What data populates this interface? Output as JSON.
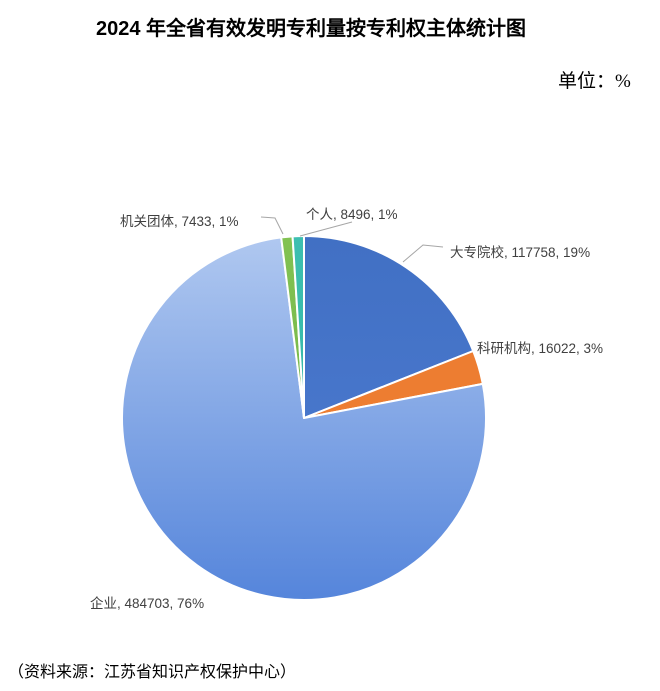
{
  "header": {
    "title": "2024 年全省有效发明专利量按专利权主体统计图",
    "unit_label": "单位：%"
  },
  "footer": {
    "source": "（资料来源：江苏省知识产权保护中心）"
  },
  "chart_data": {
    "type": "pie",
    "title": "2024 年全省有效发明专利量按专利权主体统计图",
    "unit": "%",
    "start_angle_deg": 0,
    "direction": "clockwise",
    "label_format": "{label}, {value}, {pct}%",
    "border_color": "#ffffff",
    "leader_line_color": "#a6a6a6",
    "label_text_color": "#404040",
    "slices": [
      {
        "key": "universities",
        "label": "大专院校",
        "value": 117758,
        "pct": 19,
        "color_top": "#4170C4",
        "color_bottom": "#4E7CD2"
      },
      {
        "key": "research",
        "label": "科研机构",
        "value": 16022,
        "pct": 3,
        "color_top": "#ED7D31",
        "color_bottom": "#ED7D31"
      },
      {
        "key": "enterprise",
        "label": "企业",
        "value": 484703,
        "pct": 76,
        "color_top": "#B0C8F0",
        "color_bottom": "#5585DB"
      },
      {
        "key": "government",
        "label": "机关团体",
        "value": 7433,
        "pct": 1,
        "color_top": "#82C253",
        "color_bottom": "#6BAD3F"
      },
      {
        "key": "individual",
        "label": "个人",
        "value": 8496,
        "pct": 1,
        "color_top": "#3DBFB0",
        "color_bottom": "#2FB0A1"
      }
    ]
  }
}
